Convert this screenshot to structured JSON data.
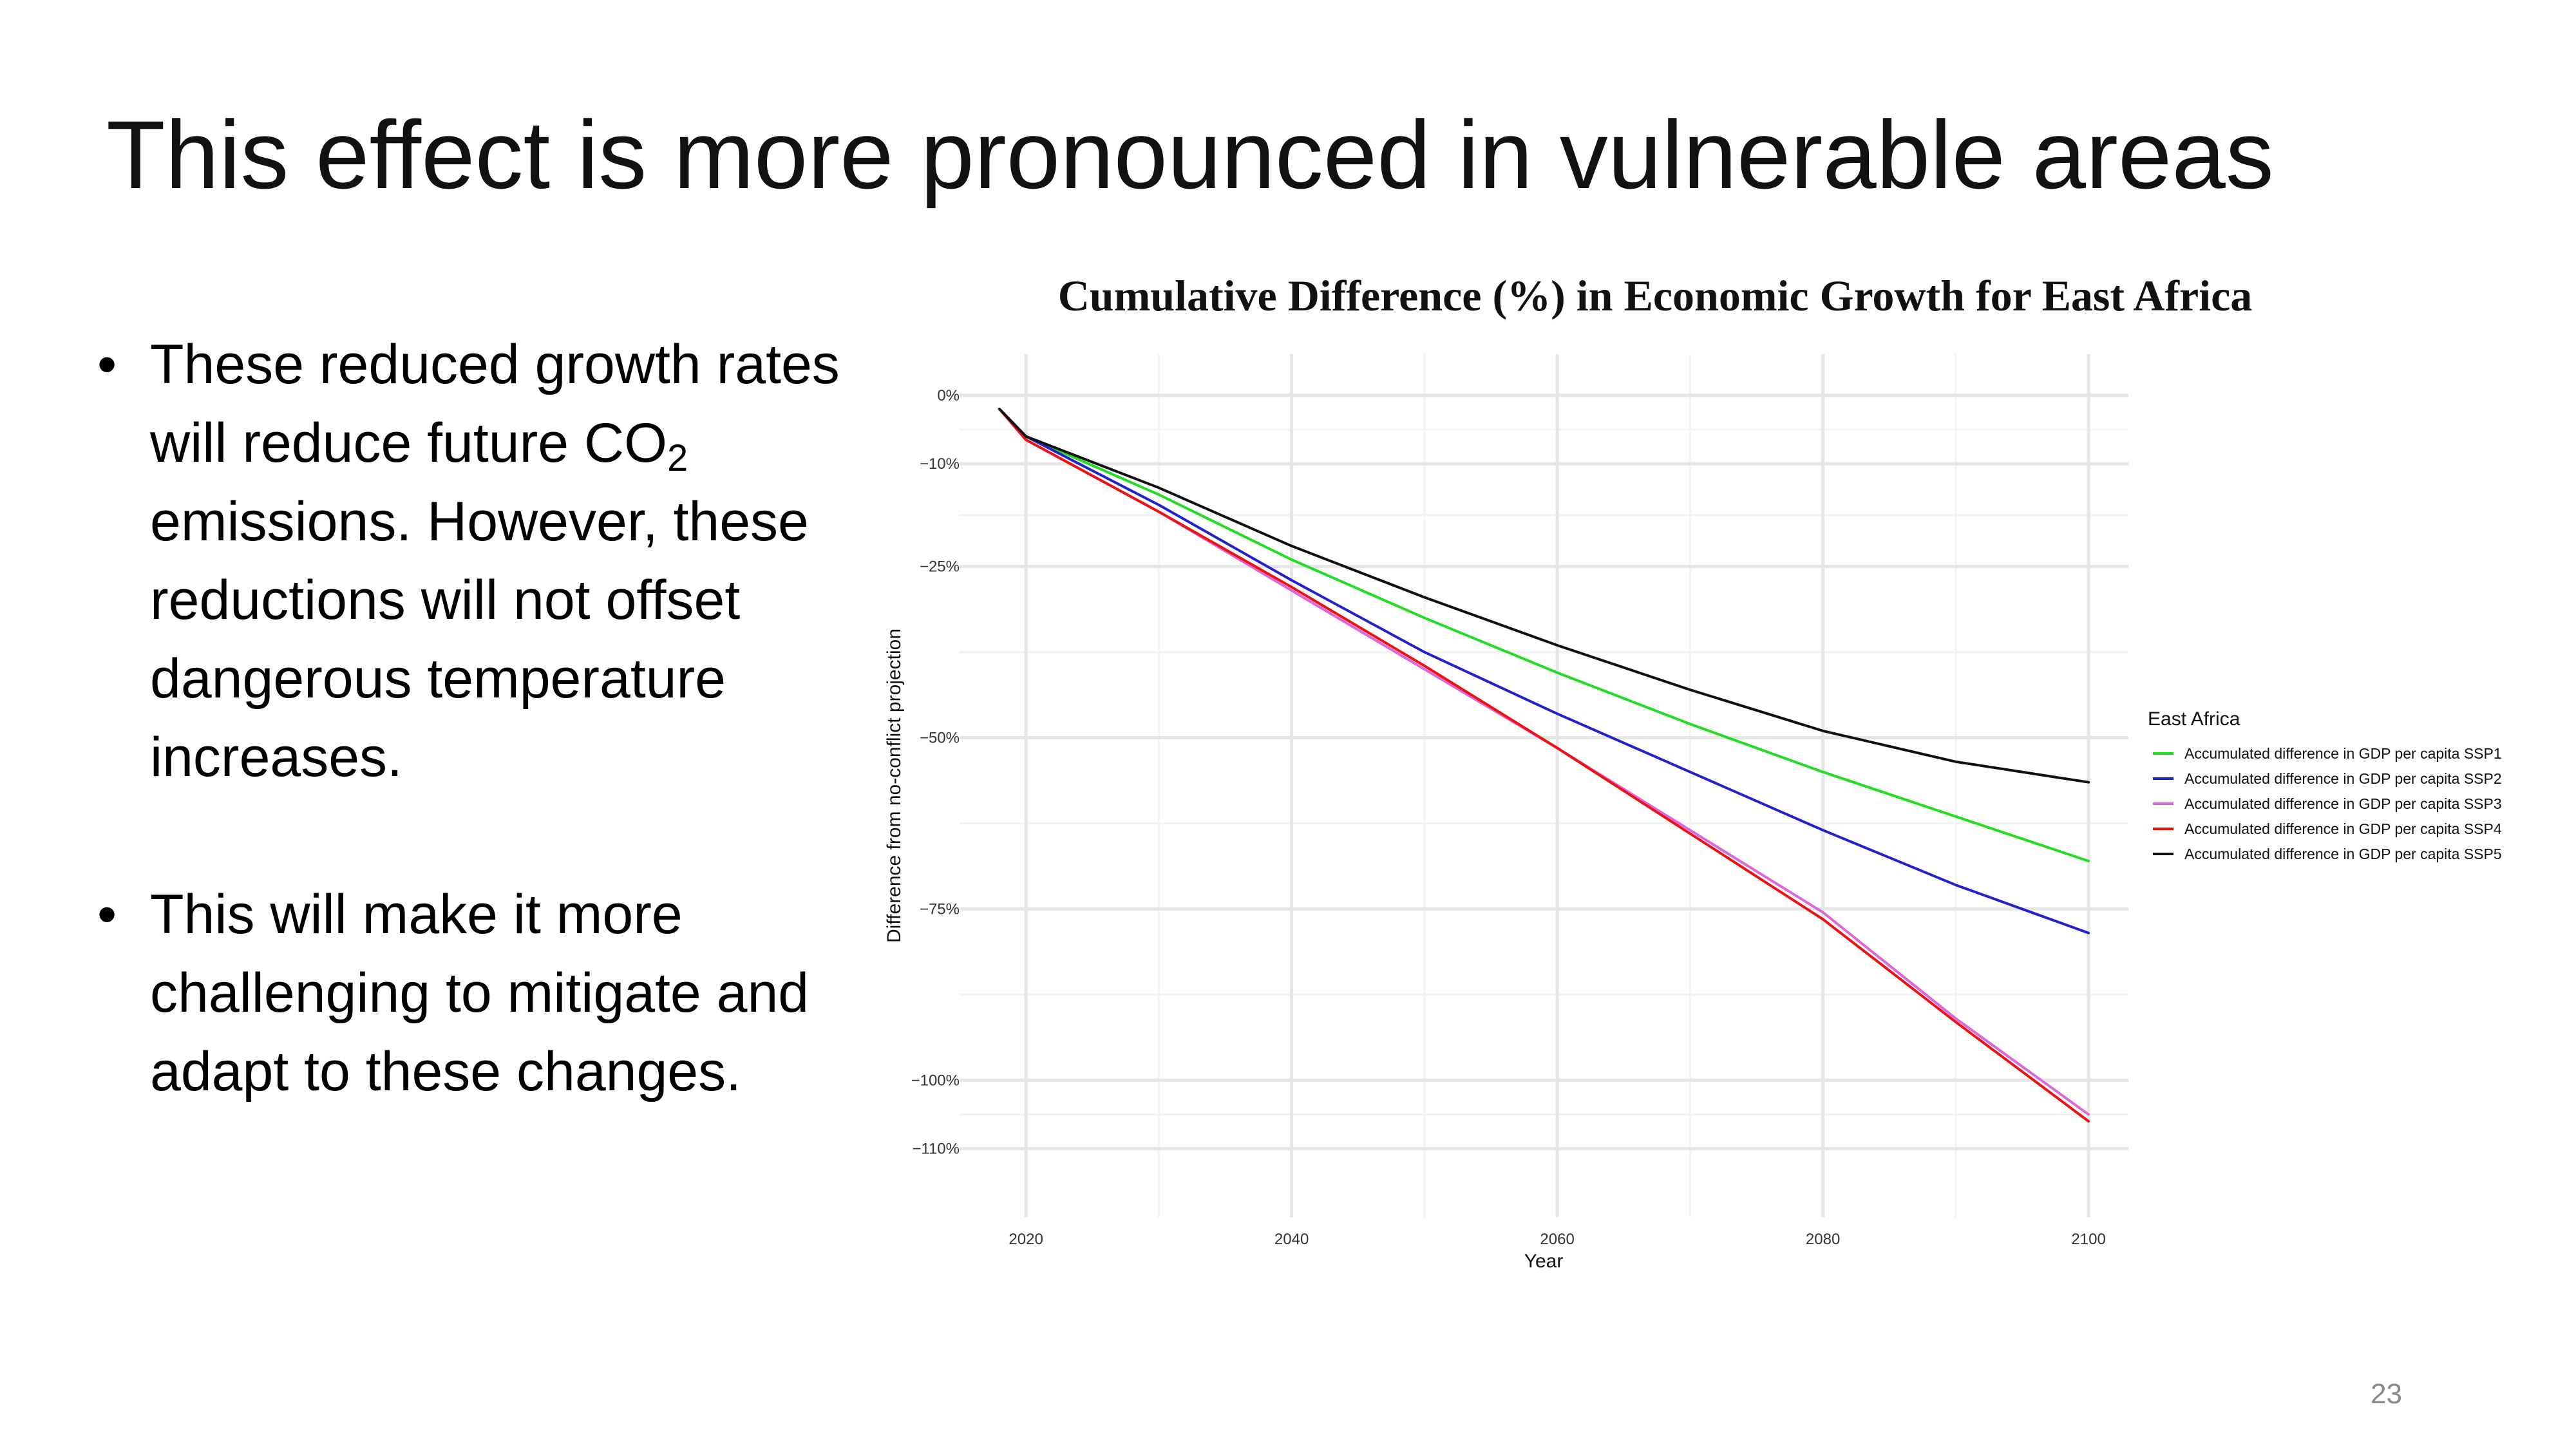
{
  "slide": {
    "title": "This effect is more pronounced in vulnerable areas",
    "page_number": "23",
    "bullets": [
      {
        "text_before": "These reduced growth rates will reduce future CO",
        "subscript": "2",
        "text_after": " emissions. However, these reductions will not offset dangerous temperature increases."
      },
      {
        "text_before": "This will make it more challenging to mitigate and adapt to these changes.",
        "subscript": "",
        "text_after": ""
      }
    ],
    "bullet_symbol": "•"
  },
  "chart_data": {
    "type": "line",
    "title": "Cumulative Difference (%) in Economic Growth for East Africa",
    "xlabel": "Year",
    "ylabel": "Difference from no-conflict projection",
    "xlim": [
      2015,
      2103
    ],
    "ylim": [
      -120,
      6
    ],
    "x_ticks": [
      2020,
      2040,
      2060,
      2080,
      2100
    ],
    "x_tick_labels": [
      "2020",
      "2040",
      "2060",
      "2080",
      "2100"
    ],
    "y_ticks": [
      0,
      -10,
      -25,
      -50,
      -75,
      -100,
      -110
    ],
    "y_tick_labels": [
      "0%",
      "−10%",
      "−25%",
      "−50%",
      "−75%",
      "−100%",
      "−110%"
    ],
    "grid": true,
    "legend": {
      "title": "East Africa",
      "position": "right"
    },
    "x": [
      2018,
      2020,
      2030,
      2040,
      2050,
      2060,
      2070,
      2080,
      2090,
      2100
    ],
    "series": [
      {
        "name": "Accumulated difference in GDP per capita SSP1",
        "color": "#22dd22",
        "values": [
          -2,
          -6,
          -14.5,
          -24,
          -32.5,
          -40.5,
          -48,
          -55,
          -61.5,
          -68
        ]
      },
      {
        "name": "Accumulated difference in GDP per capita SSP2",
        "color": "#2222cc",
        "values": [
          -2,
          -6,
          -16,
          -27,
          -37.5,
          -46.5,
          -55,
          -63.5,
          -71.5,
          -78.5
        ]
      },
      {
        "name": "Accumulated difference in GDP per capita SSP3",
        "color": "#dd66dd",
        "values": [
          -2,
          -6.5,
          -17,
          -28.5,
          -40,
          -51.5,
          -63.5,
          -75.5,
          -91,
          -105
        ]
      },
      {
        "name": "Accumulated difference in GDP per capita SSP4",
        "color": "#ee1111",
        "values": [
          -2,
          -6.5,
          -17,
          -28,
          -39.5,
          -51.5,
          -64,
          -76.5,
          -91.5,
          -106
        ]
      },
      {
        "name": "Accumulated difference in GDP per capita SSP5",
        "color": "#111111",
        "values": [
          -2,
          -6,
          -13.5,
          -22,
          -29.5,
          -36.5,
          -43,
          -49,
          -53.5,
          -56.5
        ]
      }
    ]
  }
}
